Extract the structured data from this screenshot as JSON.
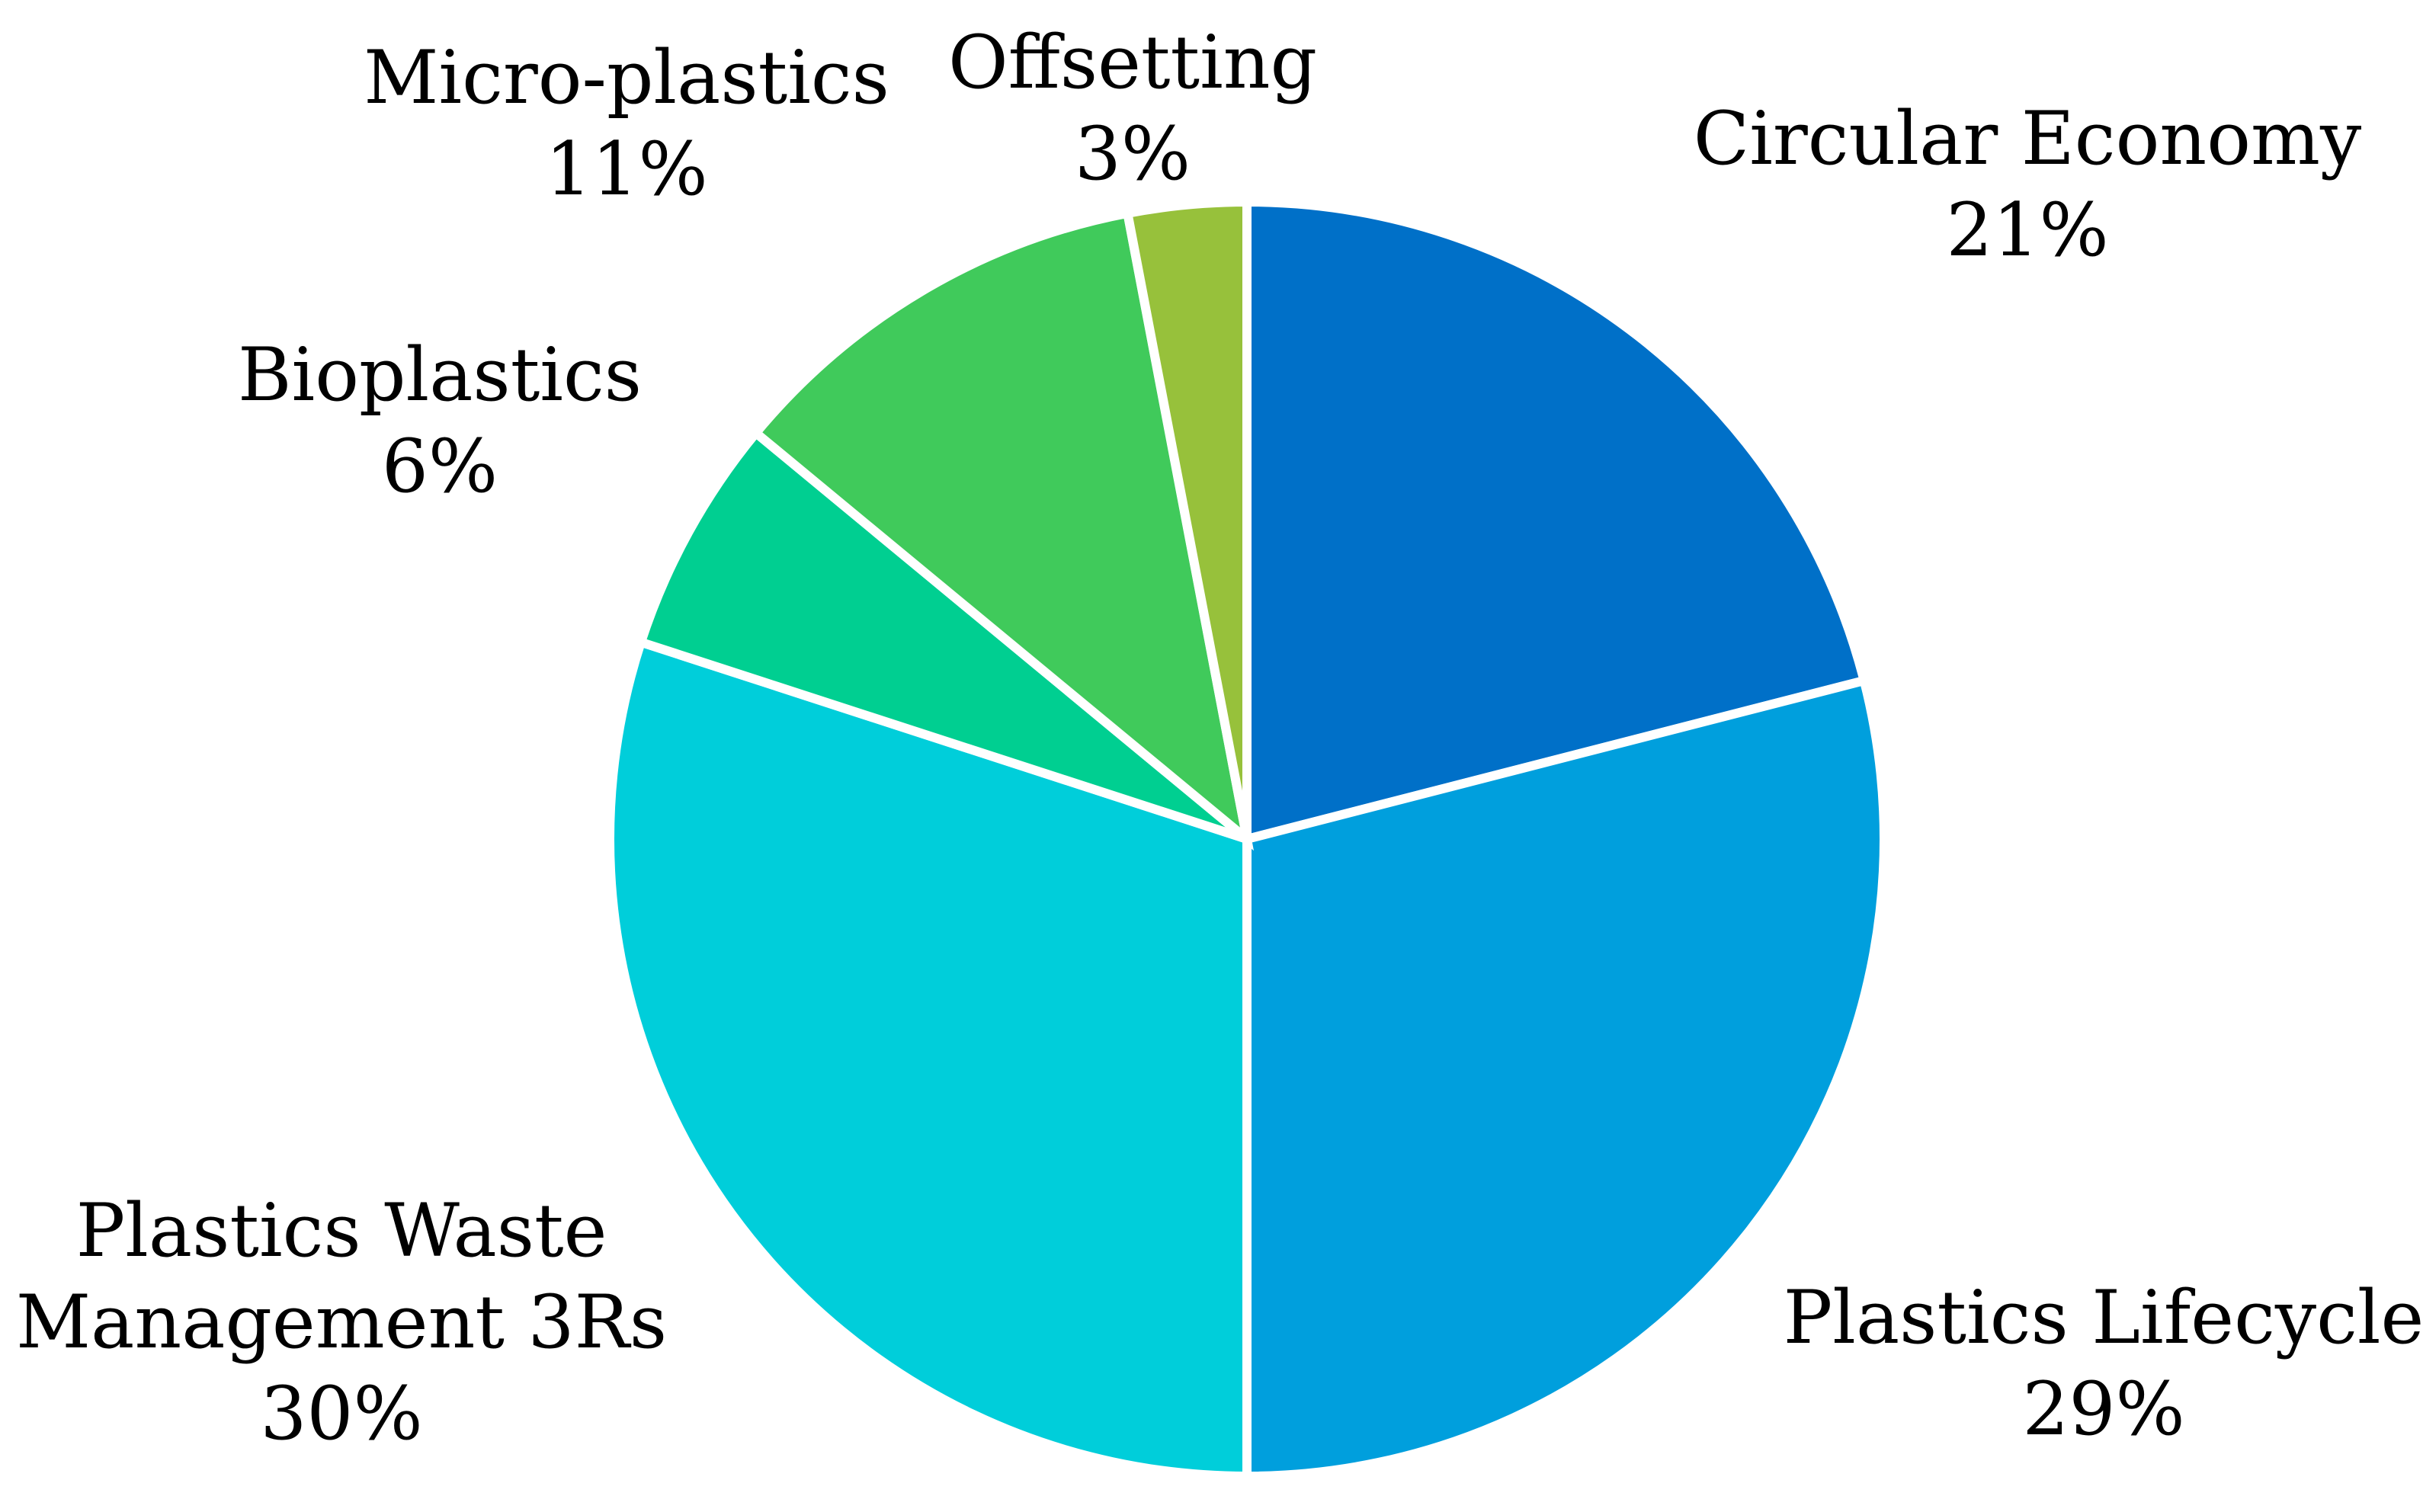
{
  "chart_data": {
    "type": "pie",
    "title": "",
    "start": "top",
    "direction": "clockwise",
    "slices": [
      {
        "label_lines": [
          "Circular Economy"
        ],
        "percent_label": "21%",
        "value": 21,
        "color": "#0070C8"
      },
      {
        "label_lines": [
          "Plastics Lifecycle"
        ],
        "percent_label": "29%",
        "value": 29,
        "color": "#009FDD"
      },
      {
        "label_lines": [
          "Plastics Waste",
          "Management 3Rs"
        ],
        "percent_label": "30%",
        "value": 30,
        "color": "#00CEDA"
      },
      {
        "label_lines": [
          "Bioplastics"
        ],
        "percent_label": "6%",
        "value": 6,
        "color": "#00CF91"
      },
      {
        "label_lines": [
          "Micro-plastics"
        ],
        "percent_label": "11%",
        "value": 11,
        "color": "#40CA5B"
      },
      {
        "label_lines": [
          "Offsetting"
        ],
        "percent_label": "3%",
        "value": 3,
        "color": "#97C13B"
      }
    ],
    "slice_border_color": "#FFFFFF",
    "legend": "none"
  }
}
